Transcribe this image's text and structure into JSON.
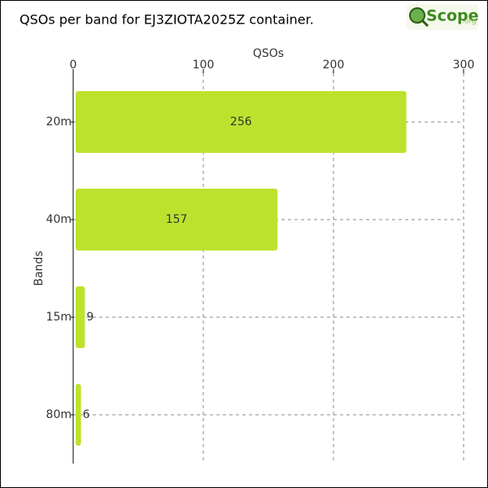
{
  "chart_data": {
    "type": "bar",
    "orientation": "horizontal",
    "title": "QSOs per band for EJ3ZIOTA2025Z container.",
    "logo": {
      "name": "Scope",
      "suffix": ".org"
    },
    "x_label": "QSOs",
    "y_label": "Bands",
    "categories": [
      "20m",
      "40m",
      "15m",
      "80m"
    ],
    "values": [
      256,
      157,
      9,
      6
    ],
    "color": "#bde22e",
    "xlim": [
      0,
      300
    ],
    "xticks": [
      0,
      100,
      200,
      300
    ],
    "grid": true
  }
}
